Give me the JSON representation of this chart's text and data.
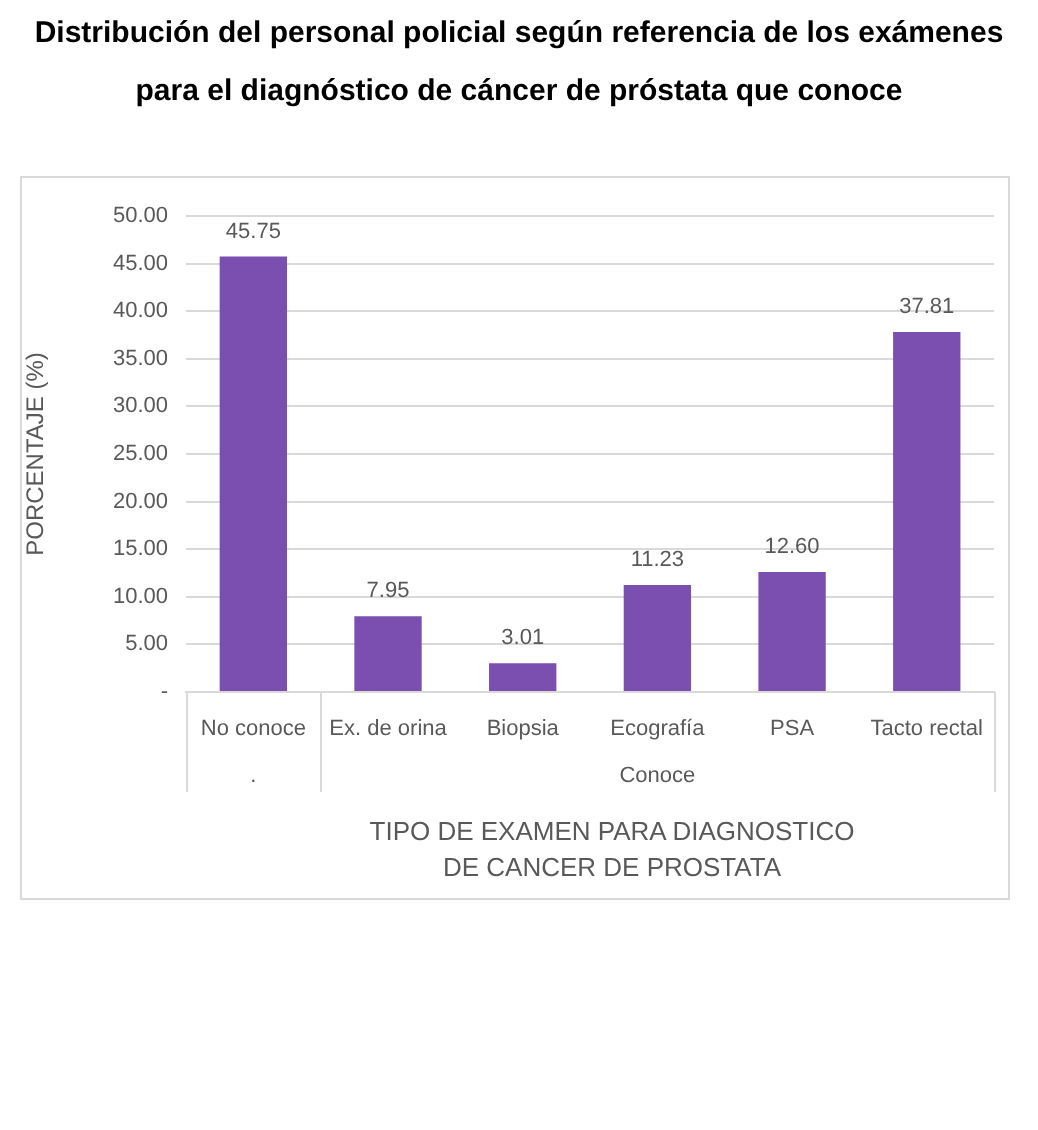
{
  "chart_data": {
    "type": "bar",
    "title": "Distribución del personal policial según referencia de los exámenes para el diagnóstico de cáncer de próstata que conoce",
    "xlabel": "TIPO DE EXAMEN PARA DIAGNOSTICO DE CANCER DE PROSTATA",
    "ylabel": "PORCENTAJE (%)",
    "categories": [
      "No conoce",
      "Ex. de orina",
      "Biopsia",
      "Ecografía",
      "PSA",
      "Tacto rectal"
    ],
    "values": [
      45.75,
      7.95,
      3.01,
      11.23,
      12.6,
      37.81
    ],
    "color": "#7a4fb0",
    "value_labels": [
      "45.75",
      "7.95",
      "3.01",
      "11.23",
      "12.60",
      "37.81"
    ],
    "annotations": [
      ".",
      "Conoce"
    ],
    "ylim": [
      0,
      50
    ],
    "yticks": [
      {
        "value": 0,
        "label": "-"
      },
      {
        "value": 5,
        "label": "5.00"
      },
      {
        "value": 10,
        "label": "10.00"
      },
      {
        "value": 15,
        "label": "15.00"
      },
      {
        "value": 20,
        "label": "20.00"
      },
      {
        "value": 25,
        "label": "25.00"
      },
      {
        "value": 30,
        "label": "30.00"
      },
      {
        "value": 35,
        "label": "35.00"
      },
      {
        "value": 40,
        "label": "40.00"
      },
      {
        "value": 45,
        "label": "45.00"
      },
      {
        "value": 50,
        "label": "50.00"
      }
    ],
    "grid": "y"
  }
}
